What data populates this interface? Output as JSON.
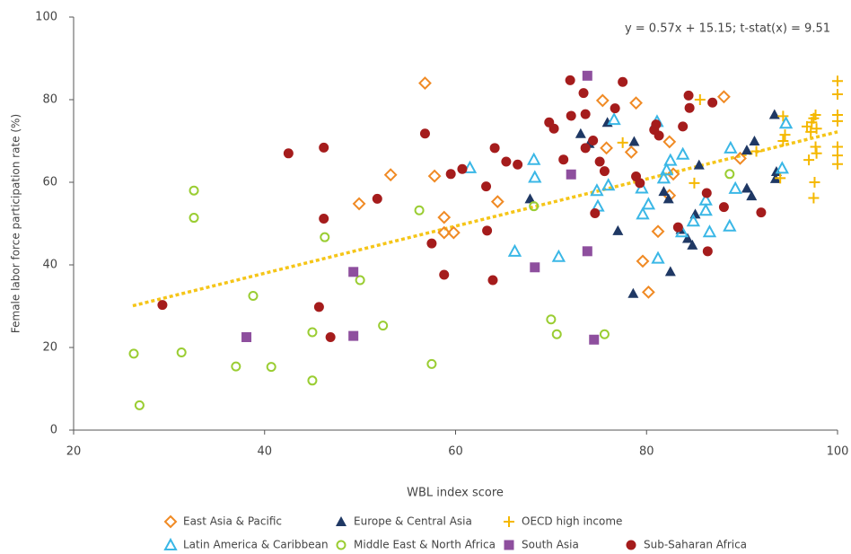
{
  "chart_data": {
    "type": "scatter",
    "x_label": "WBL index score",
    "y_label": "Female labor force participation rate (%)",
    "annotation": "y = 0.57x + 15.15; t-stat(x) = 9.51",
    "xlim": [
      20,
      100
    ],
    "xticks": [
      20,
      40,
      60,
      80,
      100
    ],
    "ylim": [
      0,
      100
    ],
    "yticks": [
      0,
      20,
      40,
      60,
      80,
      100
    ],
    "trend": {
      "color": "#f5c518",
      "x": [
        26.2,
        100
      ],
      "y": [
        30.1,
        72.2
      ]
    },
    "series": [
      {
        "name": "East Asia & Pacific",
        "color": "#f08a24",
        "marker": "diamond-open",
        "x": [
          56.8,
          53.2,
          49.9,
          58.8,
          58.8,
          59.8,
          57.8,
          64.4,
          75.4,
          75.8,
          78.9,
          78.4,
          82.4,
          82.8,
          82.4,
          88.1,
          89.8,
          79.6,
          80.2,
          81.2
        ],
        "values": [
          84,
          61.8,
          54.8,
          51.5,
          47.8,
          47.8,
          61.5,
          55.3,
          79.8,
          68.3,
          79.2,
          67.3,
          69.8,
          62,
          56.8,
          80.7,
          65.8,
          40.9,
          33.4,
          48.1
        ]
      },
      {
        "name": "Europe & Central Asia",
        "color": "#1f3864",
        "marker": "triangle",
        "x": [
          67.8,
          73.1,
          74,
          75.9,
          77,
          78.7,
          78.6,
          81.8,
          82.3,
          82.5,
          84.3,
          84.8,
          85.1,
          85.5,
          90.5,
          91,
          90.5,
          91.3,
          93.4,
          93.5,
          93.6,
          83.6
        ],
        "values": [
          56,
          71.8,
          69.4,
          74.5,
          48.3,
          69.9,
          33.1,
          57.8,
          56,
          38.4,
          46.4,
          44.8,
          52.3,
          64.2,
          58.6,
          56.7,
          67.8,
          70,
          76.4,
          60.9,
          62.6,
          48.6
        ]
      },
      {
        "name": "OECD high income",
        "color": "#f5b800",
        "marker": "plus",
        "x": [
          77.5,
          85,
          85.6,
          91.5,
          94,
          94.3,
          94.5,
          94.3,
          97,
          97.2,
          97.3,
          97.5,
          97.6,
          97.5,
          97.7,
          97.8,
          97.7,
          97.8,
          100,
          100,
          100,
          100,
          100,
          100,
          100,
          96.8
        ],
        "values": [
          69.6,
          59.8,
          80,
          67.5,
          61,
          76,
          71.5,
          70,
          65.4,
          72.2,
          74.5,
          75.5,
          60,
          56.2,
          76.3,
          73,
          68.6,
          67,
          84.5,
          81.3,
          76.3,
          74.8,
          68.6,
          66.5,
          64.4,
          73.5
        ]
      },
      {
        "name": "Latin America & Caribbean",
        "color": "#3ab7e6",
        "marker": "triangle-open",
        "x": [
          61.5,
          66.2,
          68.3,
          68.2,
          70.8,
          74.8,
          74.9,
          76,
          76.6,
          79.5,
          79.6,
          80.2,
          81.1,
          81.2,
          81.8,
          82.1,
          82.5,
          83.7,
          83.8,
          84.9,
          86.2,
          86.2,
          86.6,
          88.7,
          88.8,
          89.3,
          94.2,
          94.6
        ],
        "values": [
          63.5,
          43.3,
          61.2,
          65.5,
          42,
          58,
          54.2,
          59.3,
          75.2,
          58.6,
          52.3,
          54.7,
          74.7,
          41.6,
          61,
          63,
          65.3,
          48,
          66.8,
          50.6,
          53.2,
          55.7,
          48,
          49.4,
          68.3,
          58.5,
          63.4,
          74.3
        ]
      },
      {
        "name": "Middle East & North Africa",
        "color": "#9acd32",
        "marker": "circle-open",
        "x": [
          26.3,
          26.9,
          31.3,
          32.6,
          32.6,
          37,
          38.8,
          40.7,
          45,
          45,
          46.3,
          50,
          52.4,
          56.2,
          57.5,
          68.2,
          70,
          70.6,
          75.6,
          88.7
        ],
        "values": [
          18.5,
          6,
          18.8,
          58,
          51.4,
          15.4,
          32.5,
          15.3,
          23.7,
          12,
          46.7,
          36.3,
          25.3,
          53.2,
          16,
          54.2,
          26.8,
          23.2,
          23.2,
          62
        ]
      },
      {
        "name": "South Asia",
        "color": "#8e4f9e",
        "marker": "square",
        "x": [
          38.1,
          49.3,
          49.3,
          68.3,
          72.1,
          73.8,
          73.8,
          74.5
        ],
        "values": [
          22.5,
          38.3,
          22.8,
          39.4,
          61.9,
          85.8,
          43.3,
          21.9
        ]
      },
      {
        "name": "Sub-Saharan Africa",
        "color": "#a51c1c",
        "marker": "circle",
        "x": [
          29.3,
          42.5,
          45.7,
          46.2,
          46.2,
          46.9,
          51.8,
          56.8,
          57.5,
          58.8,
          59.5,
          60.7,
          63.2,
          63.3,
          63.9,
          64.1,
          65.3,
          66.5,
          69.8,
          70.3,
          71.3,
          72,
          72.1,
          73.4,
          73.6,
          73.6,
          74.4,
          74.6,
          75.1,
          75.6,
          76.7,
          77.5,
          78.9,
          79.3,
          81,
          80.8,
          81.3,
          83.3,
          83.8,
          84.4,
          84.5,
          86.3,
          86.4,
          86.9,
          88.1,
          92
        ],
        "values": [
          30.3,
          67,
          29.8,
          68.4,
          51.2,
          22.5,
          56,
          71.8,
          45.2,
          37.6,
          62,
          63.2,
          59,
          48.3,
          36.3,
          68.3,
          65,
          64.3,
          74.5,
          73,
          65.5,
          84.7,
          76.1,
          81.6,
          76.5,
          68.3,
          70.1,
          52.5,
          65,
          62.7,
          77.9,
          84.3,
          61.4,
          59.8,
          74,
          72.7,
          71.3,
          49.1,
          73.5,
          81,
          78,
          57.4,
          43.3,
          79.3,
          54,
          52.7
        ]
      }
    ]
  }
}
